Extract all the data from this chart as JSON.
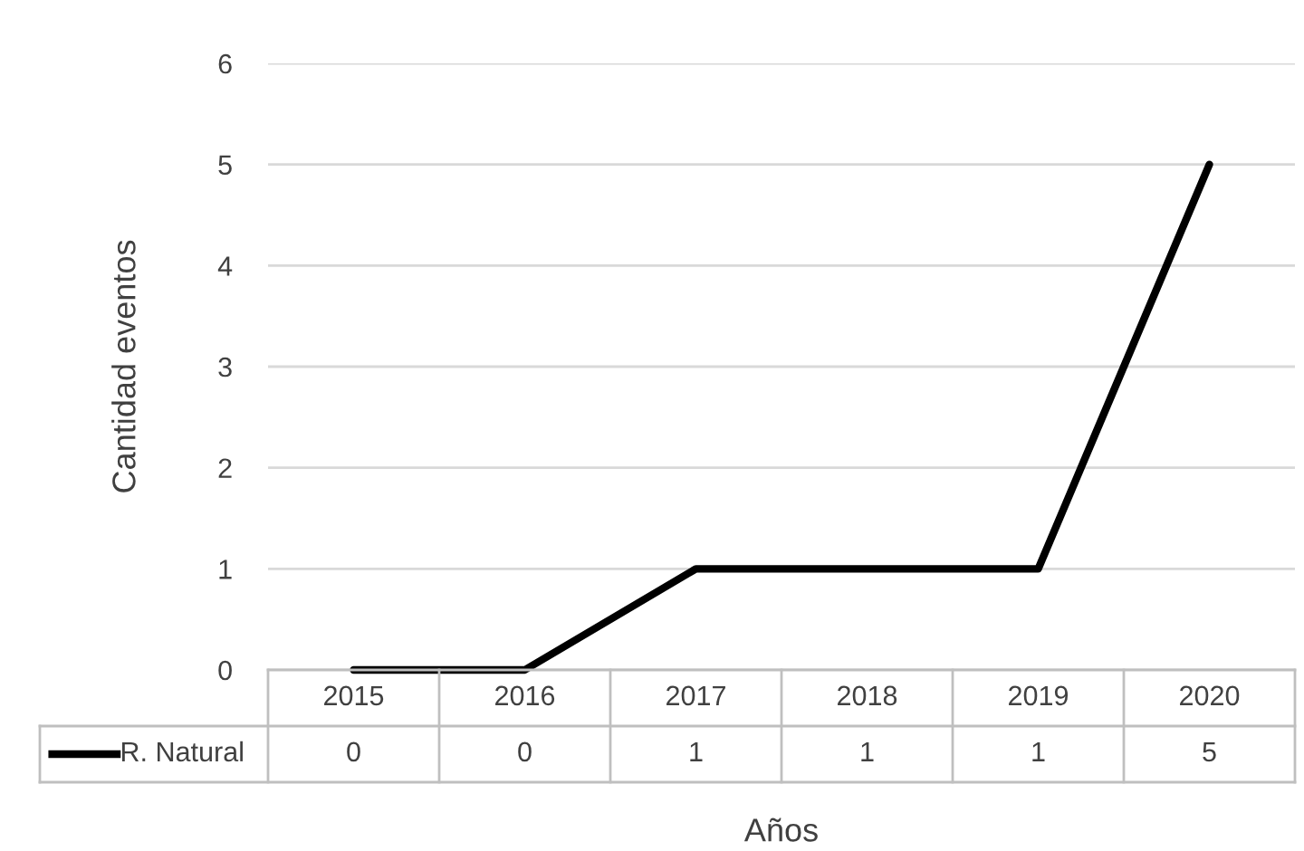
{
  "chart_data": {
    "type": "line",
    "xlabel": "Años",
    "ylabel": "Cantidad eventos",
    "categories": [
      "2015",
      "2016",
      "2017",
      "2018",
      "2019",
      "2020"
    ],
    "series": [
      {
        "name": "R. Natural",
        "color": "#000000",
        "values": [
          0,
          0,
          1,
          1,
          1,
          5
        ]
      }
    ],
    "ylim": [
      0,
      6
    ],
    "yticks": [
      0,
      1,
      2,
      3,
      4,
      5,
      6
    ],
    "grid": "y",
    "legend": "bottom",
    "data_labels": true,
    "marker": "none",
    "line_style": "solid"
  }
}
